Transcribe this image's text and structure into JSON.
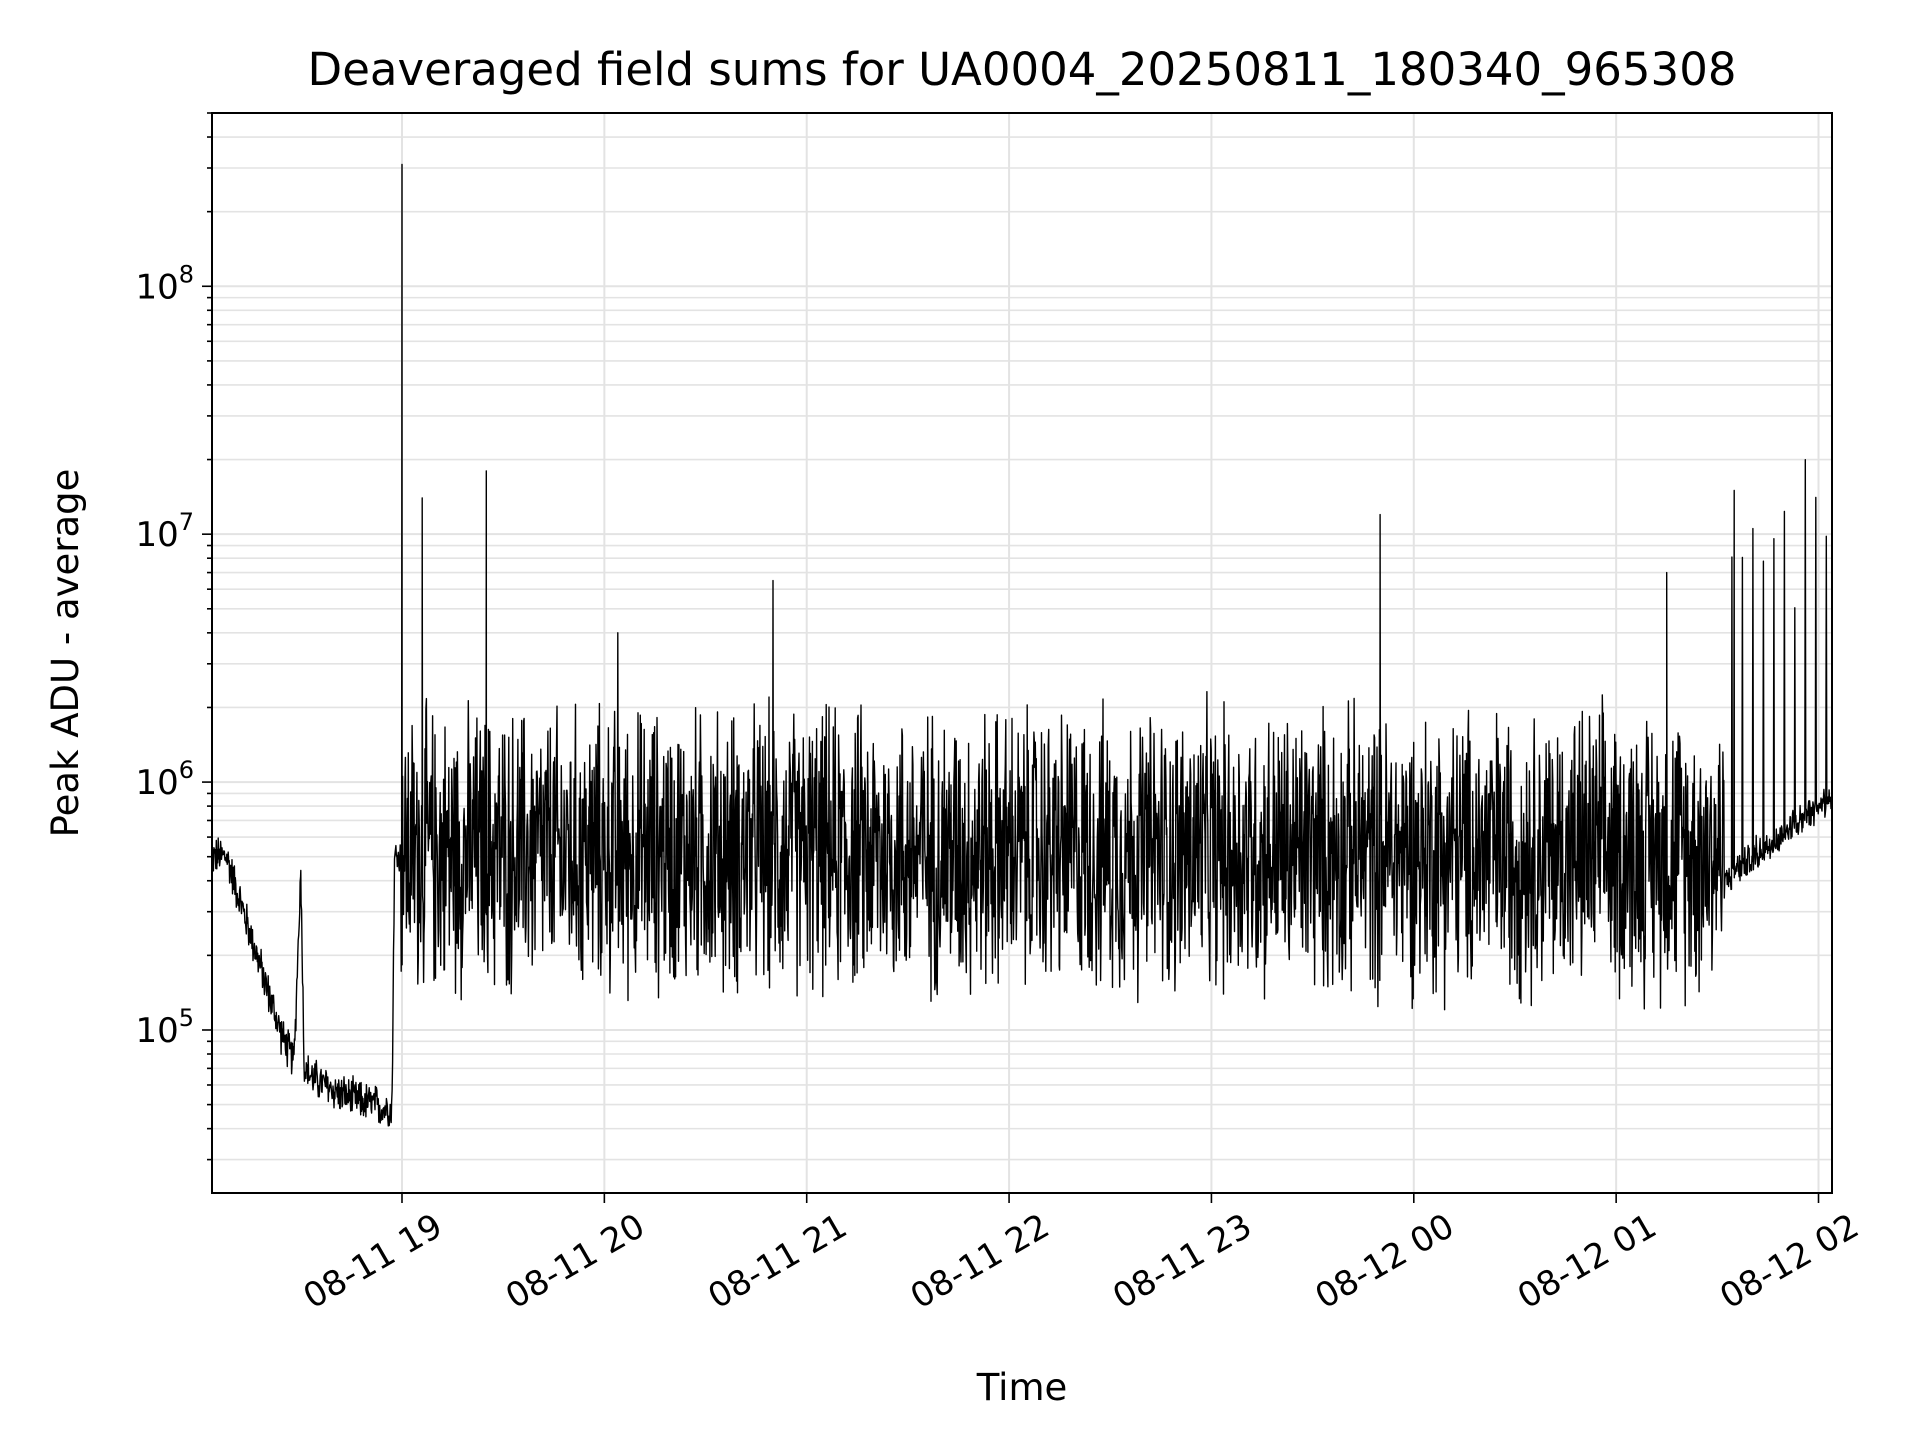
{
  "chart_data": {
    "type": "line",
    "title": "Deaveraged field sums for UA0004_20250811_180340_965308",
    "xlabel": "Time",
    "ylabel": "Peak ADU - average",
    "x_axis_kind": "datetime",
    "xlim": [
      "2025-08-11 18:03:40",
      "2025-08-12 02:04:00"
    ],
    "ylim": [
      22000,
      500000000
    ],
    "y_scale": "log",
    "grid": true,
    "legend": "none",
    "line_color": "#000000",
    "x_ticks": [
      {
        "at": "2025-08-11 19:00",
        "label": "08-11 19"
      },
      {
        "at": "2025-08-11 20:00",
        "label": "08-11 20"
      },
      {
        "at": "2025-08-11 21:00",
        "label": "08-11 21"
      },
      {
        "at": "2025-08-11 22:00",
        "label": "08-11 22"
      },
      {
        "at": "2025-08-11 23:00",
        "label": "08-11 23"
      },
      {
        "at": "2025-08-12 00:00",
        "label": "08-12 00"
      },
      {
        "at": "2025-08-12 01:00",
        "label": "08-12 01"
      },
      {
        "at": "2025-08-12 02:00",
        "label": "08-12 02"
      }
    ],
    "y_ticks": [
      {
        "value": 100000,
        "base": "10",
        "exp": "5"
      },
      {
        "value": 1000000,
        "base": "10",
        "exp": "6"
      },
      {
        "value": 10000000,
        "base": "10",
        "exp": "7"
      },
      {
        "value": 100000000,
        "base": "10",
        "exp": "8"
      }
    ],
    "series": [
      {
        "x": [
          "2025-08-11 18:03:40",
          "2025-08-11 18:08",
          "2025-08-11 18:13",
          "2025-08-11 18:18",
          "2025-08-11 18:22",
          "2025-08-11 18:25",
          "2025-08-11 18:28",
          "2025-08-11 18:30",
          "2025-08-11 18:31",
          "2025-08-11 18:33",
          "2025-08-11 18:37",
          "2025-08-11 18:42",
          "2025-08-11 18:47",
          "2025-08-11 18:52",
          "2025-08-11 18:55",
          "2025-08-11 18:56",
          "2025-08-11 18:57",
          "2025-08-11 19:00",
          "2025-08-11 19:06",
          "2025-08-11 19:15",
          "2025-08-11 19:25",
          "2025-08-11 19:34",
          "2025-08-11 19:40",
          "2025-08-11 19:50",
          "2025-08-11 20:00",
          "2025-08-11 20:04",
          "2025-08-11 20:15",
          "2025-08-11 20:30",
          "2025-08-11 20:45",
          "2025-08-11 20:50",
          "2025-08-11 21:00",
          "2025-08-11 21:15",
          "2025-08-11 21:30",
          "2025-08-11 21:45",
          "2025-08-11 22:00",
          "2025-08-11 22:15",
          "2025-08-11 22:30",
          "2025-08-11 22:45",
          "2025-08-11 23:00",
          "2025-08-11 23:15",
          "2025-08-11 23:30",
          "2025-08-11 23:40",
          "2025-08-11 23:50",
          "2025-08-12 00:00",
          "2025-08-12 00:15",
          "2025-08-12 00:30",
          "2025-08-12 00:45",
          "2025-08-12 01:00",
          "2025-08-12 01:10",
          "2025-08-12 01:15",
          "2025-08-12 01:30",
          "2025-08-12 01:35",
          "2025-08-12 01:45",
          "2025-08-12 01:55",
          "2025-08-12 02:04"
        ],
        "y": [
          800000,
          500000,
          300000,
          180000,
          120000,
          90000,
          75000,
          440000,
          70000,
          65000,
          60000,
          55000,
          52000,
          50000,
          48000,
          50000,
          47000,
          310000000,
          14000000,
          600000,
          18000000,
          700000,
          800000,
          1500000,
          600000,
          4000000,
          800000,
          500000,
          700000,
          6500000,
          600000,
          700000,
          500000,
          600000,
          700000,
          500000,
          600000,
          500000,
          600000,
          700000,
          500000,
          600000,
          12000000,
          600000,
          500000,
          600000,
          500000,
          450000,
          300000,
          7000000,
          400000,
          15000000,
          550000,
          700000,
          900000
        ]
      }
    ]
  }
}
